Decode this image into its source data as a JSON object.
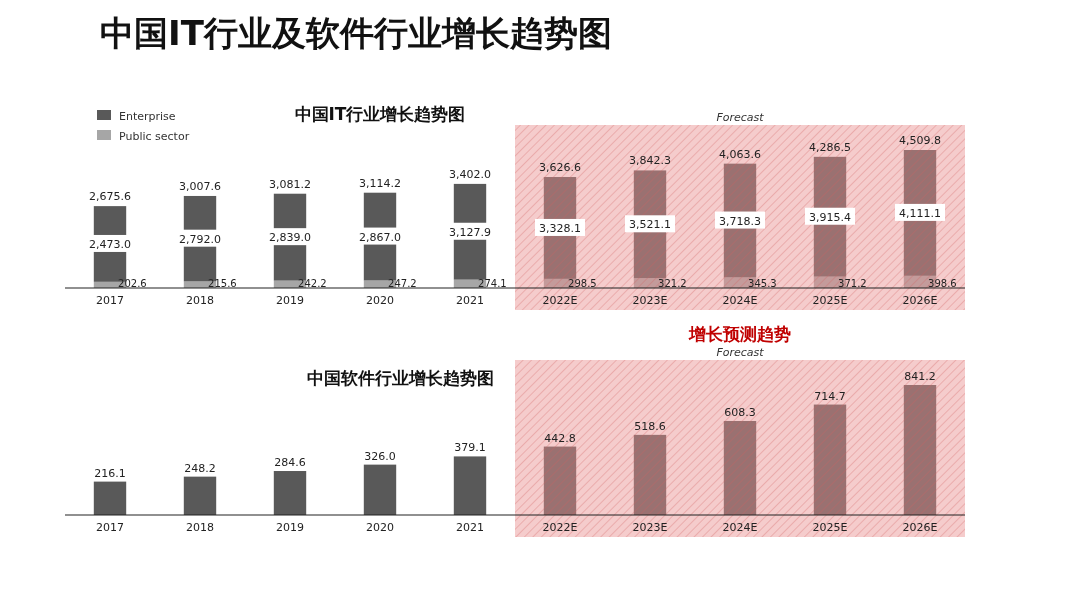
{
  "chart_data": [
    {
      "type": "bar",
      "title": "中国IT行业及软件行业增长趋势图",
      "subtitle": "中国IT行业增长趋势图",
      "categories": [
        "2017",
        "2018",
        "2019",
        "2020",
        "2021",
        "2022E",
        "2023E",
        "2024E",
        "2025E",
        "2026E"
      ],
      "stacked": true,
      "legend": "top left",
      "series": [
        {
          "name": "Public sector",
          "color": "#a6a6a6",
          "values": [
            202.6,
            215.6,
            242.2,
            247.2,
            274.1,
            298.5,
            321.2,
            345.3,
            371.2,
            398.6
          ],
          "value_labels": [
            "202.6",
            "215.6",
            "242.2",
            "247.2",
            "274.1",
            "298.5",
            "321.2",
            "345.3",
            "371.2",
            "398.6"
          ]
        },
        {
          "name": "Enterprise",
          "color": "#595959",
          "values": [
            2473.0,
            2792.0,
            2839.0,
            2867.0,
            3127.9,
            3328.1,
            3521.1,
            3718.3,
            3915.4,
            4111.1
          ],
          "value_labels": [
            "2,473.0",
            "2,792.0",
            "2,839.0",
            "2,867.0",
            "3,127.9",
            "3,328.1",
            "3,521.1",
            "3,718.3",
            "3,915.4",
            "4,111.1"
          ]
        }
      ],
      "totals": [
        "2,675.6",
        "3,007.6",
        "3,081.2",
        "3,114.2",
        "3,402.0",
        "3,626.6",
        "3,842.3",
        "4,063.6",
        "4,286.5",
        "4,509.8"
      ],
      "bands": [
        {
          "axis": "x",
          "from": "2022E",
          "to": "2026E",
          "label": "Forecast",
          "color": "#e88f8f"
        }
      ]
    },
    {
      "type": "bar",
      "title": "中国软件行业增长趋势图",
      "categories": [
        "2017",
        "2018",
        "2019",
        "2020",
        "2021",
        "2022E",
        "2023E",
        "2024E",
        "2025E",
        "2026E"
      ],
      "series": [
        {
          "color": "#595959",
          "values": [
            216.1,
            248.2,
            284.6,
            326.0,
            379.1,
            442.8,
            518.6,
            608.3,
            714.7,
            841.2
          ],
          "value_labels": [
            "216.1",
            "248.2",
            "284.6",
            "326.0",
            "379.1",
            "442.8",
            "518.6",
            "608.3",
            "714.7",
            "841.2"
          ]
        }
      ],
      "bands": [
        {
          "axis": "x",
          "from": "2022E",
          "to": "2026E",
          "label": "Forecast",
          "color": "#e88f8f"
        }
      ],
      "annotations": [
        "增长预测趋势"
      ]
    }
  ]
}
